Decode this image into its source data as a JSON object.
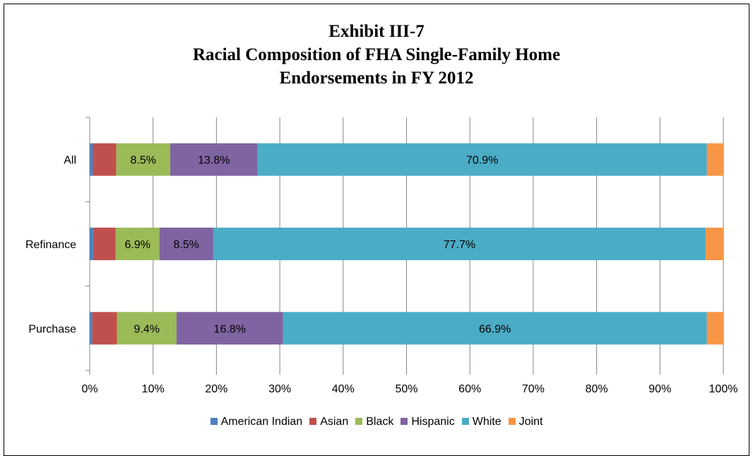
{
  "chart_data": {
    "type": "bar",
    "orientation": "horizontal",
    "stacked": "percent",
    "title": [
      "Exhibit III-7",
      "Racial Composition of FHA Single-Family Home",
      "Endorsements in FY 2012"
    ],
    "categories": [
      "All",
      "Refinance",
      "Purchase"
    ],
    "series": [
      {
        "name": "American Indian",
        "color": "#4F81BD",
        "values": [
          0.5,
          0.6,
          0.4
        ]
      },
      {
        "name": "Asian",
        "color": "#C0504D",
        "values": [
          3.7,
          3.5,
          3.9
        ]
      },
      {
        "name": "Black",
        "color": "#9BBB59",
        "values": [
          8.5,
          6.9,
          9.4
        ]
      },
      {
        "name": "Hispanic",
        "color": "#8064A2",
        "values": [
          13.8,
          8.5,
          16.8
        ]
      },
      {
        "name": "White",
        "color": "#4BACC6",
        "values": [
          70.9,
          77.7,
          66.9
        ]
      },
      {
        "name": "Joint",
        "color": "#F79646",
        "values": [
          2.6,
          2.8,
          2.6
        ]
      }
    ],
    "labeled_series": [
      "Black",
      "Hispanic",
      "White"
    ],
    "x_ticks": [
      "0%",
      "10%",
      "20%",
      "30%",
      "40%",
      "50%",
      "60%",
      "70%",
      "80%",
      "90%",
      "100%"
    ],
    "xlim": [
      0,
      100
    ],
    "grid": true,
    "legend_position": "bottom"
  }
}
